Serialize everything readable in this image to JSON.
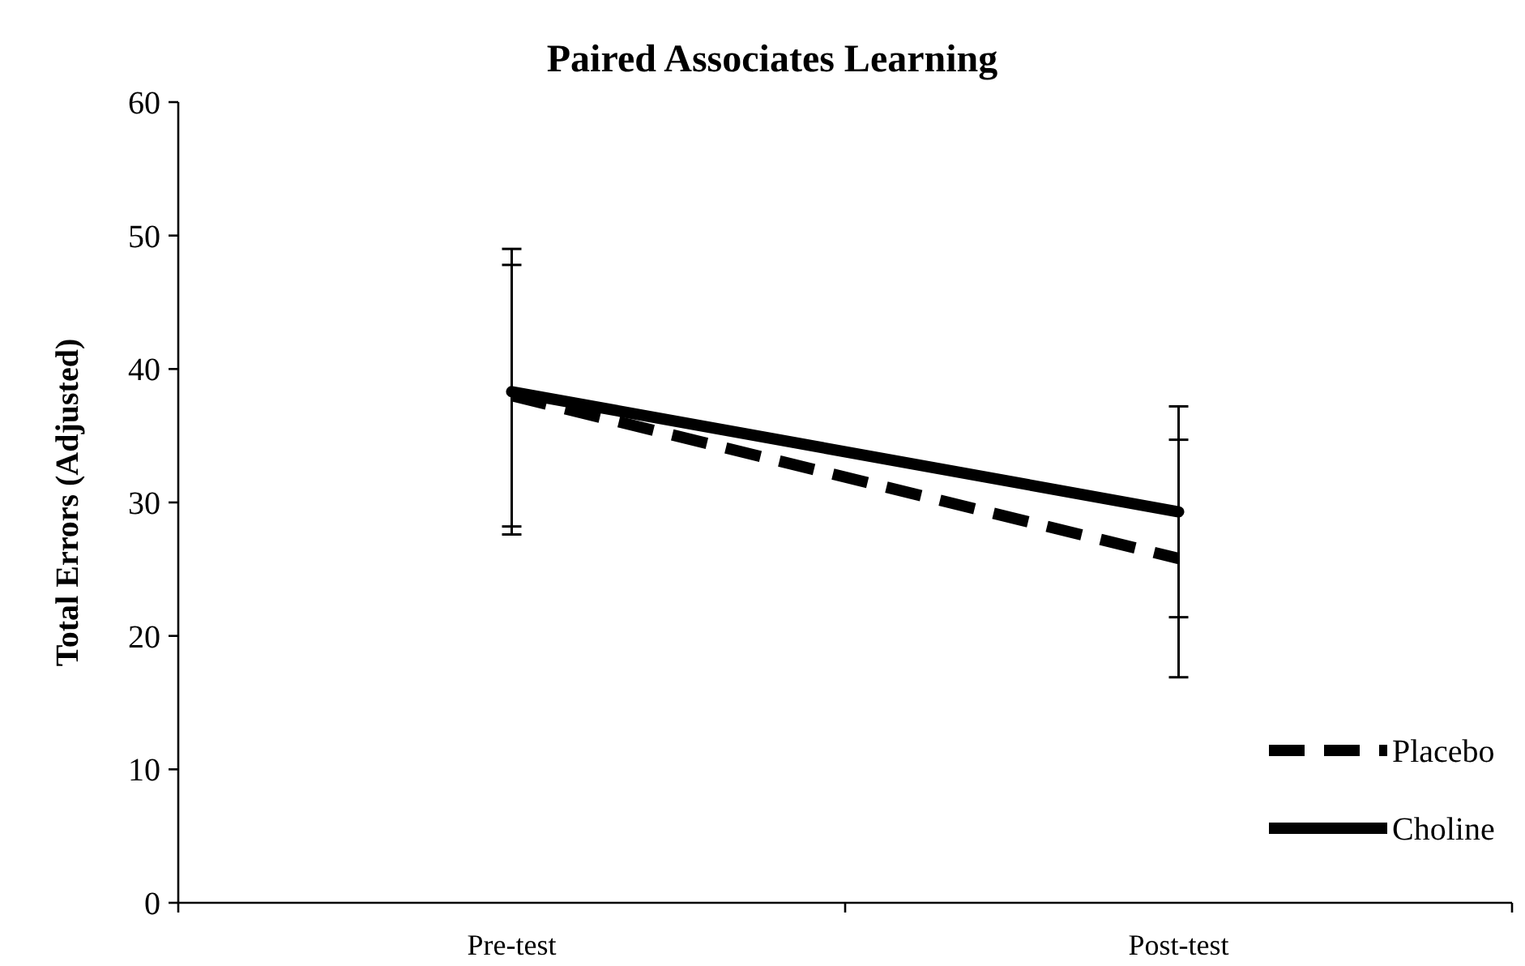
{
  "chart_data": {
    "type": "line",
    "title": "Paired Associates Learning",
    "ylabel": "Total Errors (Adjusted)",
    "categories": [
      "Pre-test",
      "Post-test"
    ],
    "series": [
      {
        "name": "Placebo",
        "color": "#000000",
        "line_style": "dashed",
        "values": [
          38.0,
          25.8
        ],
        "errors": [
          9.8,
          8.9
        ]
      },
      {
        "name": "Choline",
        "color": "#000000",
        "line_style": "solid",
        "values": [
          38.3,
          29.3
        ],
        "errors": [
          10.7,
          7.9
        ]
      }
    ],
    "ylim": [
      0,
      60
    ],
    "yticks": [
      0,
      10,
      20,
      30,
      40,
      50,
      60
    ],
    "grid": false,
    "legend": "right",
    "marker": "none"
  }
}
